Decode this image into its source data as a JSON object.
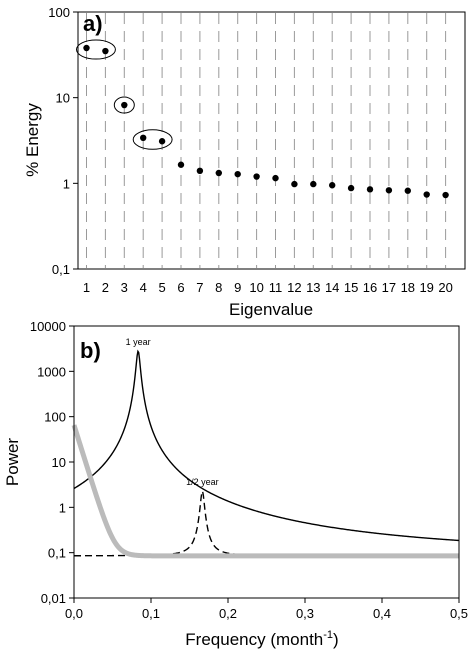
{
  "chart_data": [
    {
      "type": "scatter",
      "panel_label": "a)",
      "xlabel": "Eigenvalue",
      "ylabel": "% Energy",
      "yscale": "log",
      "ylim": [
        0.1,
        100
      ],
      "yticks": [
        "0,1",
        "1",
        "10",
        "100"
      ],
      "xticks": [
        "1",
        "2",
        "3",
        "4",
        "5",
        "6",
        "7",
        "8",
        "9",
        "10",
        "11",
        "12",
        "13",
        "14",
        "15",
        "16",
        "17",
        "18",
        "19",
        "20"
      ],
      "x": [
        1,
        2,
        3,
        4,
        5,
        6,
        7,
        8,
        9,
        10,
        11,
        12,
        13,
        14,
        15,
        16,
        17,
        18,
        19,
        20
      ],
      "y": [
        38,
        35,
        8.2,
        3.4,
        3.1,
        1.65,
        1.4,
        1.32,
        1.28,
        1.2,
        1.15,
        0.98,
        0.98,
        0.95,
        0.88,
        0.85,
        0.83,
        0.82,
        0.74,
        0.73
      ],
      "groups_circled": [
        [
          1,
          2
        ],
        [
          3
        ],
        [
          4,
          5
        ]
      ],
      "grid": "vertical dashed"
    },
    {
      "type": "line",
      "panel_label": "b)",
      "xlabel": "Frequency (month",
      "xlabel_sup": "-1",
      "xlabel_close": ")",
      "ylabel": "Power",
      "yscale": "log",
      "xlim": [
        0,
        0.5
      ],
      "ylim": [
        0.01,
        10000
      ],
      "xticks": [
        "0,0",
        "0,1",
        "0,2",
        "0,3",
        "0,4",
        "0,5"
      ],
      "yticks": [
        "0,01",
        "0,1",
        "1",
        "10",
        "100",
        "1000",
        "10000"
      ],
      "series": [
        {
          "style": "solid",
          "color": "#000000",
          "peak_x": 0.0833,
          "peak_y": 2800,
          "base_y": 0.085
        },
        {
          "style": "dashed",
          "color": "#000000",
          "peak_x": 0.1667,
          "peak_y": 2.3,
          "base_y": 0.085
        },
        {
          "style": "thick",
          "color": "#bbbbbb",
          "start_y": 65,
          "base_y": 0.085
        }
      ],
      "annotations": [
        {
          "text": "1 year",
          "x": 0.0833,
          "y": 2800
        },
        {
          "text": "1/2 year",
          "x": 0.1667,
          "y": 2.3
        }
      ]
    }
  ]
}
